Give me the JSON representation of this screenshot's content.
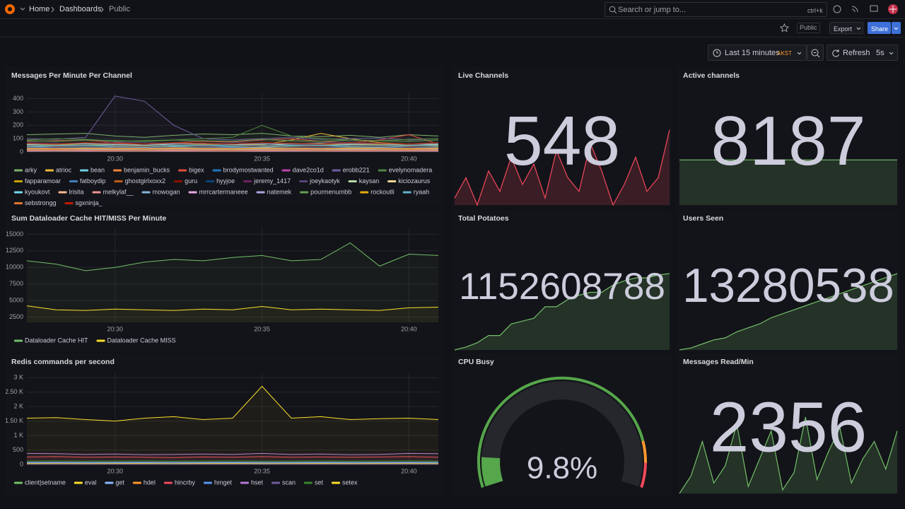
{
  "header": {
    "breadcrumb": [
      "Home",
      "Dashboards",
      "Public"
    ],
    "search_placeholder": "Search or jump to...",
    "search_shortcut": "ctrl+k"
  },
  "toolbar": {
    "tag": "Public",
    "export": "Export",
    "share": "Share"
  },
  "time_controls": {
    "range": "Last 15 minutes",
    "timezone": "AKST",
    "refresh": "Refresh",
    "interval": "5s"
  },
  "chart_data": [
    {
      "type": "line",
      "title": "Messages Per Minute Per Channel",
      "ylim": [
        0,
        440
      ],
      "yticks": [
        0,
        100,
        200,
        300,
        400
      ],
      "x": [
        null,
        null,
        null,
        "20:30",
        null,
        null,
        null,
        null,
        "20:35",
        null,
        null,
        null,
        null,
        "20:40",
        null
      ],
      "series": [
        {
          "name": "arky",
          "color": "#7EB26D",
          "values": [
            130,
            135,
            140,
            120,
            110,
            125,
            135,
            130,
            140,
            120,
            115,
            125,
            110,
            130,
            120
          ]
        },
        {
          "name": "atrioc",
          "color": "#EAB839",
          "values": [
            60,
            55,
            50,
            45,
            60,
            70,
            65,
            60,
            55,
            90,
            140,
            100,
            70,
            60,
            55
          ]
        },
        {
          "name": "bean",
          "color": "#6ED0E0",
          "values": [
            40,
            35,
            30,
            40,
            45,
            40,
            35,
            30,
            40,
            45,
            50,
            40,
            35,
            30,
            40
          ]
        },
        {
          "name": "benjamin_bucks",
          "color": "#EF843C",
          "values": [
            20,
            25,
            20,
            15,
            20,
            25,
            20,
            25,
            20,
            15,
            20,
            25,
            20,
            25,
            20
          ]
        },
        {
          "name": "bigex",
          "color": "#E24D42",
          "values": [
            80,
            85,
            90,
            70,
            60,
            70,
            80,
            75,
            90,
            100,
            80,
            70,
            90,
            130,
            60
          ]
        },
        {
          "name": "brodymostwanted",
          "color": "#1F78C1",
          "values": [
            30,
            35,
            40,
            30,
            25,
            30,
            40,
            35,
            30,
            25,
            30,
            35,
            40,
            30,
            35
          ]
        },
        {
          "name": "dave2co1d",
          "color": "#BA43A9",
          "values": [
            10,
            15,
            10,
            12,
            15,
            10,
            12,
            15,
            10,
            12,
            15,
            10,
            12,
            15,
            10
          ]
        },
        {
          "name": "erobb221",
          "color": "#705DA0",
          "values": [
            100,
            95,
            110,
            420,
            380,
            200,
            100,
            90,
            100,
            110,
            95,
            100,
            105,
            90,
            100
          ]
        },
        {
          "name": "evelynomadera",
          "color": "#508642",
          "values": [
            90,
            100,
            95,
            80,
            85,
            90,
            100,
            110,
            200,
            120,
            100,
            90,
            85,
            95,
            100
          ]
        },
        {
          "name": "fapparamoar",
          "color": "#CCA300",
          "values": [
            50,
            55,
            60,
            50,
            45,
            50,
            55,
            60,
            50,
            45,
            50,
            60,
            55,
            50,
            45
          ]
        },
        {
          "name": "fatboydip",
          "color": "#447EBC",
          "values": [
            25,
            30,
            25,
            20,
            25,
            30,
            25,
            20,
            25,
            30,
            25,
            20,
            25,
            30,
            25
          ]
        },
        {
          "name": "ghostgirlxoxx2",
          "color": "#C15C17",
          "values": [
            15,
            20,
            15,
            10,
            15,
            20,
            15,
            10,
            15,
            20,
            15,
            10,
            15,
            20,
            15
          ]
        },
        {
          "name": "guru",
          "color": "#890F02",
          "values": [
            45,
            40,
            50,
            45,
            40,
            50,
            45,
            40,
            50,
            45,
            40,
            50,
            45,
            40,
            50
          ]
        },
        {
          "name": "hyyjoe",
          "color": "#0A437C",
          "values": [
            35,
            30,
            35,
            40,
            35,
            30,
            35,
            40,
            35,
            30,
            35,
            40,
            35,
            30,
            35
          ]
        },
        {
          "name": "jeremy_1417",
          "color": "#6D1F62",
          "values": [
            5,
            8,
            5,
            6,
            8,
            5,
            6,
            8,
            5,
            6,
            8,
            5,
            6,
            8,
            5
          ]
        },
        {
          "name": "joeykaotyk",
          "color": "#584477",
          "values": [
            70,
            65,
            60,
            75,
            70,
            65,
            60,
            70,
            65,
            60,
            70,
            75,
            65,
            60,
            70
          ]
        },
        {
          "name": "kaysan",
          "color": "#B7DBAB",
          "values": [
            55,
            60,
            65,
            55,
            50,
            60,
            65,
            55,
            50,
            60,
            65,
            55,
            50,
            60,
            55
          ]
        },
        {
          "name": "kiciozaurus",
          "color": "#F4D598",
          "values": [
            20,
            18,
            22,
            20,
            18,
            22,
            20,
            18,
            22,
            20,
            18,
            22,
            20,
            18,
            22
          ]
        },
        {
          "name": "kyoukovt",
          "color": "#70DBED",
          "values": [
            40,
            45,
            50,
            40,
            35,
            45,
            50,
            40,
            35,
            45,
            50,
            40,
            35,
            45,
            50
          ]
        },
        {
          "name": "lrisita",
          "color": "#F9BA8F",
          "values": [
            12,
            14,
            12,
            10,
            12,
            14,
            12,
            10,
            12,
            14,
            12,
            10,
            12,
            14,
            12
          ]
        },
        {
          "name": "melkylaf__",
          "color": "#F29191",
          "values": [
            30,
            28,
            32,
            30,
            28,
            32,
            30,
            28,
            32,
            30,
            28,
            32,
            30,
            28,
            32
          ]
        },
        {
          "name": "mowogan",
          "color": "#82B5D8",
          "values": [
            60,
            58,
            62,
            60,
            58,
            62,
            60,
            58,
            62,
            60,
            58,
            62,
            60,
            58,
            62
          ]
        },
        {
          "name": "mrrcartermaneee",
          "color": "#E5A8E2",
          "values": [
            8,
            10,
            8,
            9,
            10,
            8,
            9,
            10,
            8,
            9,
            10,
            8,
            9,
            10,
            8
          ]
        },
        {
          "name": "natemek",
          "color": "#AEA2E0",
          "values": [
            18,
            20,
            18,
            16,
            18,
            20,
            18,
            16,
            18,
            20,
            18,
            16,
            18,
            20,
            18
          ]
        },
        {
          "name": "pourmenumbb",
          "color": "#629E51",
          "values": [
            85,
            80,
            90,
            85,
            80,
            90,
            85,
            80,
            95,
            85,
            80,
            90,
            85,
            80,
            90
          ]
        },
        {
          "name": "rockoutli",
          "color": "#E5AC0E",
          "values": [
            25,
            22,
            28,
            25,
            22,
            28,
            25,
            22,
            28,
            25,
            22,
            28,
            25,
            22,
            28
          ]
        },
        {
          "name": "ryaah",
          "color": "#64B0C8",
          "values": [
            50,
            48,
            52,
            50,
            48,
            52,
            50,
            48,
            52,
            50,
            48,
            52,
            50,
            48,
            52
          ]
        },
        {
          "name": "sebstrongg",
          "color": "#E0752D",
          "values": [
            14,
            16,
            14,
            12,
            14,
            16,
            14,
            12,
            14,
            16,
            14,
            12,
            14,
            16,
            14
          ]
        },
        {
          "name": "sgxninja_",
          "color": "#BF1B00",
          "values": [
            65,
            60,
            70,
            65,
            60,
            70,
            65,
            60,
            70,
            65,
            60,
            70,
            65,
            60,
            70
          ]
        }
      ]
    },
    {
      "type": "stat",
      "title": "Live Channels",
      "value": 548,
      "color": "#f2495c",
      "sparkline": [
        510,
        525,
        505,
        530,
        515,
        540,
        520,
        535,
        510,
        545,
        525,
        515,
        550,
        530,
        505,
        520,
        540,
        515,
        525,
        560
      ]
    },
    {
      "type": "stat",
      "title": "Active channels",
      "value": 8187,
      "color": "#73bf69",
      "sparkline": [
        8187,
        8187,
        8187,
        8187,
        8187,
        8187,
        8187,
        8187,
        8187,
        8187
      ]
    },
    {
      "type": "line",
      "title": "Sum Dataloader Cache HIT/MISS Per Minute",
      "ylim": [
        1700,
        15900
      ],
      "yticks": [
        2500,
        5000,
        7500,
        10000,
        12500,
        15000
      ],
      "x": [
        null,
        null,
        null,
        "20:30",
        null,
        null,
        null,
        null,
        "20:35",
        null,
        null,
        null,
        null,
        "20:40",
        null
      ],
      "series": [
        {
          "name": "Dataloader Cache HIT",
          "color": "#73bf69",
          "values": [
            11000,
            10500,
            9500,
            10000,
            10800,
            11200,
            11000,
            11500,
            11800,
            11000,
            11200,
            13700,
            10200,
            12000,
            11800
          ]
        },
        {
          "name": "Dataloader Cache MISS",
          "color": "#fade2a",
          "values": [
            4200,
            3600,
            3500,
            3700,
            3600,
            3500,
            3700,
            3600,
            4100,
            3600,
            3700,
            3600,
            3500,
            3900,
            4000
          ]
        }
      ]
    },
    {
      "type": "stat",
      "title": "Total Potatoes",
      "value": 1152608788,
      "color": "#73bf69",
      "sparkline": [
        1100000000,
        1102000000,
        1105000000,
        1110000000,
        1110000000,
        1118000000,
        1120000000,
        1122000000,
        1130000000,
        1130000000,
        1135000000,
        1138000000,
        1140000000,
        1140000000,
        1145000000,
        1148000000,
        1150000000,
        1150000000,
        1152000000,
        1153000000
      ]
    },
    {
      "type": "stat",
      "title": "Users Seen",
      "value": 13280538,
      "color": "#73bf69",
      "sparkline": [
        12900000,
        12910000,
        12930000,
        12950000,
        12960000,
        12990000,
        13010000,
        13030000,
        13060000,
        13080000,
        13100000,
        13120000,
        13140000,
        13160000,
        13180000,
        13200000,
        13220000,
        13240000,
        13260000,
        13280000
      ]
    },
    {
      "type": "line",
      "title": "Redis commands per second",
      "ylim": [
        0,
        3150
      ],
      "yticks": [
        0,
        500,
        {
          "value": 1000,
          "label": "1 K"
        },
        {
          "value": 1500,
          "label": "1.50 K"
        },
        {
          "value": 2000,
          "label": "2 K"
        },
        {
          "value": 2500,
          "label": "2.50 K"
        },
        {
          "value": 3000,
          "label": "3 K"
        }
      ],
      "x": [
        null,
        null,
        null,
        "20:30",
        null,
        null,
        null,
        null,
        "20:35",
        null,
        null,
        null,
        null,
        "20:40",
        null
      ],
      "series": [
        {
          "name": "client|setname",
          "color": "#73bf69",
          "values": [
            20,
            20,
            20,
            20,
            20,
            20,
            20,
            20,
            20,
            20,
            20,
            20,
            20,
            20,
            20
          ]
        },
        {
          "name": "eval",
          "color": "#fade2a",
          "values": [
            40,
            42,
            40,
            38,
            40,
            42,
            40,
            38,
            40,
            42,
            40,
            38,
            40,
            42,
            40
          ]
        },
        {
          "name": "get",
          "color": "#8ab8ff",
          "values": [
            60,
            62,
            58,
            60,
            62,
            58,
            60,
            62,
            58,
            60,
            62,
            58,
            60,
            62,
            58
          ]
        },
        {
          "name": "hdel",
          "color": "#ff9830",
          "values": [
            10,
            12,
            10,
            11,
            12,
            10,
            11,
            12,
            10,
            11,
            12,
            10,
            11,
            12,
            10
          ]
        },
        {
          "name": "hincrby",
          "color": "#f2495c",
          "values": [
            260,
            270,
            250,
            260,
            250,
            240,
            260,
            250,
            270,
            250,
            260,
            250,
            260,
            270,
            250
          ]
        },
        {
          "name": "hmget",
          "color": "#5794f2",
          "values": [
            80,
            82,
            78,
            80,
            82,
            78,
            80,
            82,
            78,
            80,
            82,
            78,
            80,
            82,
            78
          ]
        },
        {
          "name": "hset",
          "color": "#b877d9",
          "values": [
            380,
            370,
            350,
            360,
            340,
            350,
            360,
            350,
            380,
            350,
            360,
            340,
            350,
            380,
            370
          ]
        },
        {
          "name": "scan",
          "color": "#705da0",
          "values": [
            5,
            5,
            5,
            5,
            5,
            5,
            5,
            5,
            5,
            5,
            5,
            5,
            5,
            5,
            5
          ]
        },
        {
          "name": "set",
          "color": "#37872d",
          "values": [
            120,
            125,
            118,
            120,
            125,
            118,
            120,
            125,
            118,
            120,
            125,
            118,
            120,
            125,
            118
          ]
        },
        {
          "name": "setex",
          "color": "#fade2a",
          "values": [
            1600,
            1620,
            1550,
            1500,
            1600,
            1650,
            1550,
            1600,
            2700,
            1600,
            1650,
            1550,
            1580,
            1600,
            1550
          ]
        }
      ]
    },
    {
      "type": "gauge",
      "title": "CPU Busy",
      "value": 9.8,
      "value_label": "9.8%",
      "min": 0,
      "max": 100,
      "thresholds": [
        {
          "value": 0,
          "color": "#56a64b"
        },
        {
          "value": 85,
          "color": "#ff9830"
        },
        {
          "value": 92,
          "color": "#f2495c"
        }
      ]
    },
    {
      "type": "stat",
      "title": "Messages Read/Min",
      "value": 2356,
      "color": "#73bf69",
      "sparkline": [
        2200,
        2250,
        2350,
        2230,
        2280,
        2400,
        2220,
        2300,
        2380,
        2210,
        2260,
        2420,
        2240,
        2320,
        2390,
        2230,
        2300,
        2350,
        2270,
        2380
      ]
    }
  ]
}
